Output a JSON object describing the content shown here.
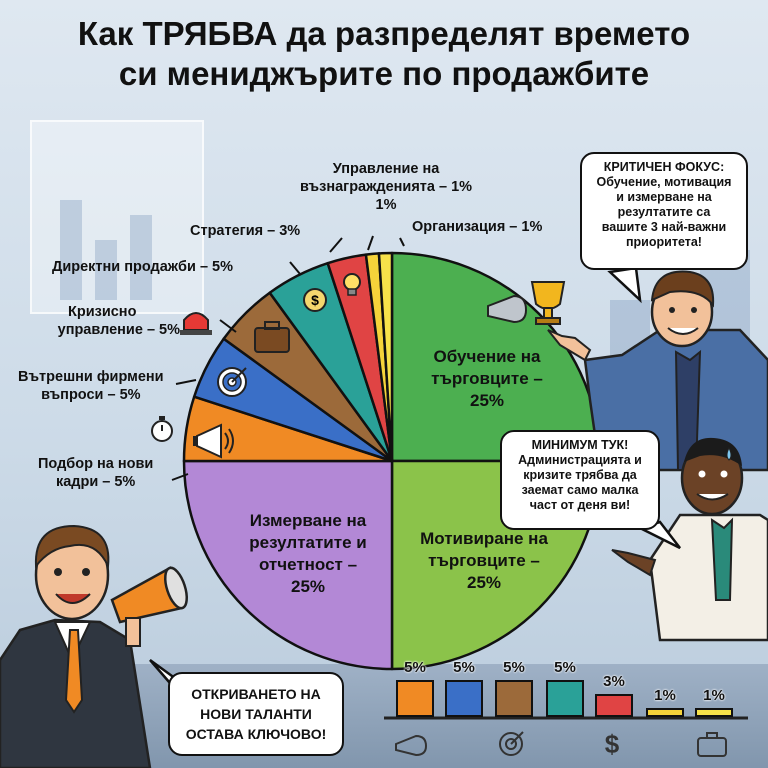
{
  "title_lines": [
    "Как ТРЯБВА да разпределят времето",
    "си мениджърите по продажбите"
  ],
  "chart_data": {
    "type": "pie",
    "title": "Как ТРЯБВА да разпределят времето си мениджърите по продажбите",
    "slices": [
      {
        "label": "Обучение на търговците – 25%",
        "value": 25,
        "color": "#4caf50",
        "icon": "trophy-whistle-icon"
      },
      {
        "label": "Мотивиране на търговците – 25%",
        "value": 25,
        "color": "#8bc34a",
        "icon": ""
      },
      {
        "label": "Измерване на резултатите и отчетност – 25%",
        "value": 25,
        "color": "#b388d6",
        "icon": ""
      },
      {
        "label": "Подбор на нови кадри – 5%",
        "value": 5,
        "color": "#f08a24",
        "icon": "megaphone-icon"
      },
      {
        "label": "Вътрешни фирмени въпроси – 5%",
        "value": 5,
        "color": "#3a6fc7",
        "icon": "target-icon"
      },
      {
        "label": "Кризисно управление – 5%",
        "value": 5,
        "color": "#9c6a3a",
        "icon": "briefcase-icon"
      },
      {
        "label": "Директни продажби – 5%",
        "value": 5,
        "color": "#2aa198",
        "icon": "dollar-icon"
      },
      {
        "label": "Стратегия – 3%",
        "value": 3,
        "color": "#e04444",
        "icon": "lightbulb-icon"
      },
      {
        "label": "Управление на възнагражденията – 1%",
        "value": 1,
        "color": "#f5d33a",
        "icon": ""
      },
      {
        "label": "Организация – 1%",
        "value": 1,
        "color": "#f7e24a",
        "icon": ""
      }
    ],
    "bars": [
      {
        "value_label": "5%",
        "value": 5,
        "color": "#f08a24"
      },
      {
        "value_label": "5%",
        "value": 5,
        "color": "#3a6fc7"
      },
      {
        "value_label": "5%",
        "value": 5,
        "color": "#9c6a3a"
      },
      {
        "value_label": "5%",
        "value": 5,
        "color": "#2aa198"
      },
      {
        "value_label": "3%",
        "value": 3,
        "color": "#e04444"
      },
      {
        "value_label": "1%",
        "value": 1,
        "color": "#f5d33a"
      },
      {
        "value_label": "1%",
        "value": 1,
        "color": "#f7e24a"
      }
    ],
    "bar_icons": [
      "whistle-icon",
      "target-icon",
      "dollar-icon",
      "briefcase-icon"
    ]
  },
  "labels": {
    "remuneration": [
      "Управление на",
      "възнагражденията – 1%"
    ],
    "remuneration_small": "1%",
    "organization": "Организация – 1%",
    "strategy": "Стратегия – 3%",
    "direct_sales": "Директни продажби – 5%",
    "crisis": [
      "Кризисно",
      "управление – 5%"
    ],
    "internal": [
      "Вътрешни фирмени",
      "въпроси – 5%"
    ],
    "recruit": [
      "Подбор на нови",
      "кадри – 5%"
    ],
    "training": [
      "Обучение на",
      "търговците –",
      "25%"
    ],
    "motivation": [
      "Мотивиране на",
      "търговците –",
      "25%"
    ],
    "measurement": [
      "Измерване на",
      "резултатите и",
      "отчетност –",
      "25%"
    ]
  },
  "bubbles": {
    "critical": [
      "КРИТИЧЕН ФОКУС:",
      "Обучение, мотивация",
      "и измерване на",
      "резултатите са",
      "вашите 3 най-важни",
      "приоритета!"
    ],
    "minimum": [
      "МИНИМУМ ТУК!",
      "Администрацията и",
      "кризите трябва да",
      "заемат само малка",
      "част от деня ви!"
    ],
    "talent": [
      "ОТКРИВАНЕТО НА",
      "НОВИ ТАЛАНТИ",
      "ОСТАВА КЛЮЧОВО!"
    ]
  },
  "colors": {
    "suit": "#2f3640",
    "shirt": "#4a6fa5",
    "skin": "#f2c19a",
    "skin_dark": "#6b4226",
    "megaphone": "#f08a24"
  }
}
